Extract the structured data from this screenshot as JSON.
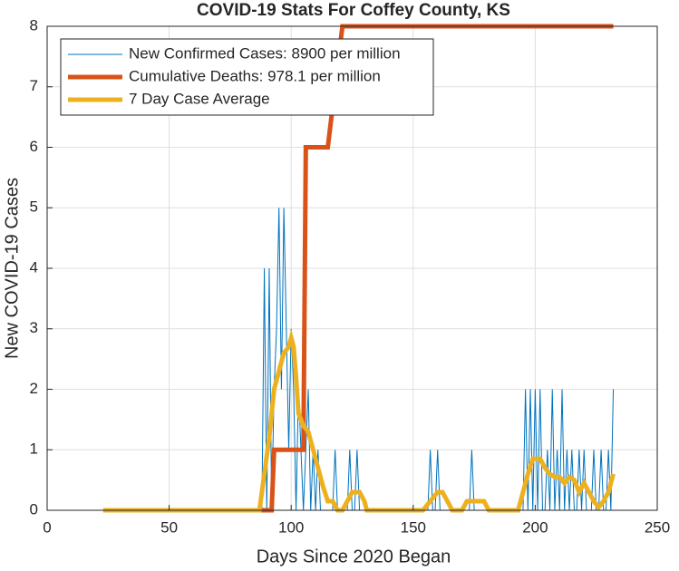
{
  "chart_data": {
    "type": "line",
    "title": "COVID-19 Stats For Coffey County, KS",
    "x_label": "Days Since 2020 Began",
    "y_label": "New COVID-19 Cases",
    "xlim": [
      0,
      250
    ],
    "xticks": [
      0,
      50,
      100,
      150,
      200,
      250
    ],
    "ylim": [
      0,
      8
    ],
    "yticks": [
      0,
      1,
      2,
      3,
      4,
      5,
      6,
      7,
      8
    ],
    "grid": true,
    "legend_position": "upper-left",
    "series": [
      {
        "name": "New Confirmed Cases: 8900 per million",
        "color": "#0072BD",
        "line_width": 1,
        "x": [
          23,
          86,
          87,
          88,
          89,
          90,
          91,
          92,
          93,
          94,
          95,
          96,
          97,
          98,
          99,
          100,
          101,
          102,
          103,
          104,
          105,
          106,
          107,
          108,
          109,
          110,
          111,
          112,
          117,
          118,
          119,
          123,
          124,
          125,
          126,
          127,
          128,
          156,
          157,
          158,
          159,
          160,
          161,
          173,
          174,
          175,
          194,
          195,
          196,
          197,
          198,
          199,
          200,
          201,
          202,
          203,
          204,
          205,
          206,
          207,
          208,
          209,
          210,
          211,
          212,
          213,
          214,
          215,
          216,
          217,
          218,
          219,
          220,
          221,
          222,
          223,
          224,
          225,
          226,
          227,
          228,
          229,
          230,
          231,
          232
        ],
        "values": [
          0,
          0,
          0,
          0,
          4,
          0,
          4,
          0,
          2,
          3,
          5,
          2,
          5,
          3,
          1,
          3,
          2,
          0,
          2,
          1,
          0,
          1,
          2,
          0,
          1,
          0,
          1,
          0,
          0,
          1,
          0,
          0,
          1,
          0,
          0,
          1,
          0,
          0,
          1,
          0,
          0,
          1,
          0,
          0,
          1,
          0,
          0,
          0,
          2,
          0,
          2,
          0,
          2,
          0,
          2,
          0,
          0,
          1,
          0,
          2,
          0,
          1,
          0,
          2,
          0,
          1,
          0,
          1,
          0,
          0,
          1,
          0,
          1,
          0,
          0,
          0,
          1,
          0,
          0,
          1,
          0,
          0,
          1,
          0,
          2
        ]
      },
      {
        "name": "Cumulative Deaths: 978.1 per million",
        "color": "#D95319",
        "line_width": 5,
        "x": [
          23,
          92,
          93,
          105,
          106,
          115,
          118,
          121,
          232
        ],
        "values": [
          0,
          0,
          1,
          1,
          6,
          6,
          7,
          8,
          8
        ]
      },
      {
        "name": "7 Day Case Average",
        "color": "#EDB120",
        "line_width": 5,
        "x": [
          23,
          87,
          89,
          91,
          93,
          95,
          97,
          99,
          100,
          101,
          102,
          103,
          105,
          107,
          109,
          111,
          113,
          115,
          117,
          119,
          121,
          123,
          125,
          128,
          130,
          131,
          154,
          157,
          160,
          162,
          164,
          166,
          170,
          172,
          179,
          181,
          193,
          195,
          197,
          199,
          202,
          204,
          206,
          208,
          210,
          212,
          214,
          216,
          218,
          220,
          222,
          224,
          226,
          228,
          230,
          232
        ],
        "values": [
          0,
          0,
          0.6,
          1.2,
          2,
          2.3,
          2.6,
          2.7,
          2.85,
          2.7,
          2.2,
          1.6,
          1.4,
          1.3,
          1,
          0.7,
          0.4,
          0.15,
          0.15,
          0,
          0,
          0.15,
          0.3,
          0.3,
          0.15,
          0,
          0,
          0.15,
          0.3,
          0.3,
          0.15,
          0,
          0,
          0.15,
          0.15,
          0,
          0,
          0.3,
          0.6,
          0.85,
          0.85,
          0.7,
          0.6,
          0.55,
          0.55,
          0.45,
          0.55,
          0.5,
          0.3,
          0.45,
          0.3,
          0.15,
          0.05,
          0.15,
          0.3,
          0.6
        ]
      }
    ]
  }
}
